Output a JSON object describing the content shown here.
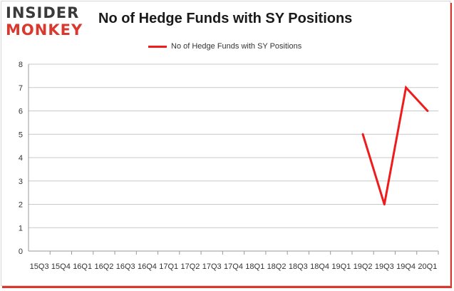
{
  "header": {
    "logo_top": "INSIDER",
    "logo_bottom": "MONKEY",
    "title": "No of Hedge Funds with SY Positions"
  },
  "colors": {
    "series": "#ee1c1c",
    "grid": "#c8c8c8",
    "axis_text": "#333333",
    "brand_red": "#d9382f"
  },
  "chart_data": {
    "type": "line",
    "title": "No of Hedge Funds with SY Positions",
    "xlabel": "",
    "ylabel": "",
    "ylim": [
      0,
      8
    ],
    "yticks": [
      0,
      1,
      2,
      3,
      4,
      5,
      6,
      7,
      8
    ],
    "grid": true,
    "legend_position": "top-center",
    "categories": [
      "15Q3",
      "15Q4",
      "16Q1",
      "16Q2",
      "16Q3",
      "16Q4",
      "17Q1",
      "17Q2",
      "17Q3",
      "17Q4",
      "18Q1",
      "18Q2",
      "18Q3",
      "18Q4",
      "19Q1",
      "19Q2",
      "19Q3",
      "19Q4",
      "20Q1"
    ],
    "series": [
      {
        "name": "No of Hedge Funds with SY Positions",
        "values": [
          null,
          null,
          null,
          null,
          null,
          null,
          null,
          null,
          null,
          null,
          null,
          null,
          null,
          null,
          null,
          5,
          2,
          7,
          6
        ]
      }
    ]
  }
}
